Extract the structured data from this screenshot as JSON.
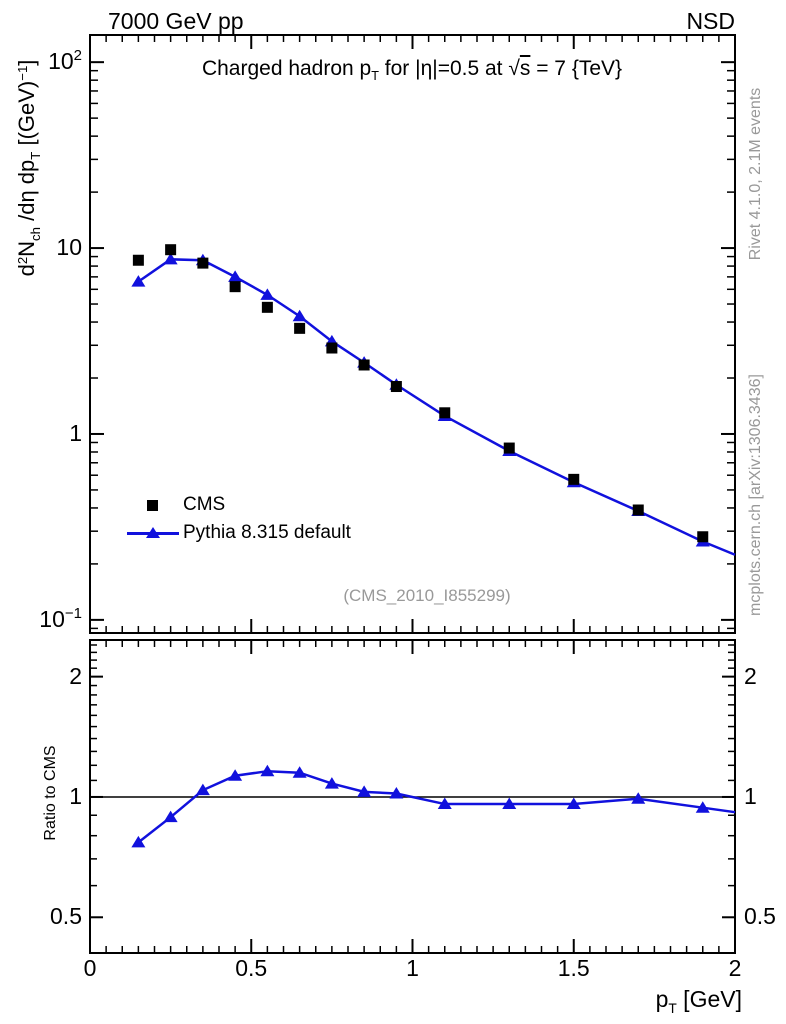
{
  "header": {
    "left_label": "7000 GeV pp",
    "right_label": "NSD"
  },
  "plot_title_parts": {
    "t1": "Charged hadron p",
    "t1_sub": "T",
    "t2": " for |η|=0.5 at ",
    "sqrt": "√",
    "sqrt_arg": "s",
    "t3": " = 7 {TeV}"
  },
  "axis_titles": {
    "y_d": "d",
    "y_d_exp": "2",
    "y_N": "N",
    "y_N_sub": "ch",
    "y_mid": " /dη  dp",
    "y_mid_sub": "T",
    "y_unit_open": " [(GeV)",
    "y_unit_exp": "−1",
    "y_unit_close": "]",
    "ratio": "Ratio to CMS",
    "x_p": "p",
    "x_sub": "T",
    "x_rest": " [GeV]"
  },
  "side_notes": {
    "top_vertical": "Rivet 4.1.0,  2.1M events",
    "bottom_vertical": "mcplots.cern.ch [arXiv:1306.3436]"
  },
  "watermark": "(CMS_2010_I855299)",
  "legend": {
    "entries": [
      {
        "label": "CMS",
        "marker": "black-square"
      },
      {
        "label": "Pythia 8.315 default",
        "marker": "blue-line-triangle"
      }
    ]
  },
  "colors": {
    "mc_blue": "#1111dd",
    "data_black": "#000000",
    "annotation_gray": "#999999"
  },
  "chart_data": {
    "type": "line",
    "title": "Charged hadron pT for |eta|=0.5 at sqrt(s) = 7 TeV",
    "xlabel": "pT [GeV]",
    "ylabel": "d2Nch/deta dpT [(GeV)-1]",
    "ratio_ylabel": "Ratio to CMS",
    "yscale": "log",
    "xlim": [
      0,
      2
    ],
    "main_ylim": [
      0.085,
      140
    ],
    "ratio_ylim": [
      0.407,
      2.47
    ],
    "x_values": [
      0.15,
      0.25,
      0.35,
      0.45,
      0.55,
      0.65,
      0.75,
      0.85,
      0.95,
      1.1,
      1.3,
      1.5,
      1.7,
      1.9
    ],
    "series": [
      {
        "name": "CMS",
        "marker": "square",
        "color_key": "data_black",
        "line": false,
        "values": [
          8.6,
          9.8,
          8.3,
          6.2,
          4.8,
          3.7,
          2.9,
          2.35,
          1.8,
          1.3,
          0.84,
          0.57,
          0.39,
          0.28
        ]
      },
      {
        "name": "Pythia 8.315 default",
        "marker": "triangle",
        "color_key": "mc_blue",
        "line": true,
        "values": [
          6.6,
          8.7,
          8.6,
          7.0,
          5.6,
          4.3,
          3.15,
          2.42,
          1.84,
          1.25,
          0.81,
          0.55,
          0.385,
          0.264
        ],
        "line_extend_x": 2.0,
        "line_extend_value": 0.224
      }
    ],
    "ratio": {
      "name": "Pythia 8.315 default / CMS",
      "color_key": "mc_blue",
      "marker": "triangle",
      "values": [
        0.77,
        0.89,
        1.04,
        1.13,
        1.16,
        1.15,
        1.08,
        1.03,
        1.02,
        0.96,
        0.96,
        0.96,
        0.99,
        0.94
      ],
      "line_extend_x": 2.0,
      "line_extend_value": 0.916,
      "reference_line": 1
    },
    "x_major_ticks": [
      0,
      0.5,
      1,
      1.5,
      2
    ],
    "x_tick_labels": [
      "0",
      "0.5",
      "1",
      "1.5",
      "2"
    ],
    "x_minor_step": 0.05,
    "y_tick_labels": [
      {
        "base": "10",
        "exp": "2",
        "value": 100
      },
      {
        "base": "10",
        "exp": "",
        "value": 10
      },
      {
        "base": "1",
        "exp": "",
        "value": 1
      },
      {
        "base": "10",
        "exp": "−1",
        "value": 0.1
      }
    ],
    "ratio_tick_labels": [
      {
        "label": "2",
        "value": 2
      },
      {
        "label": "1",
        "value": 1
      },
      {
        "label": "0.5",
        "value": 0.5
      }
    ]
  }
}
